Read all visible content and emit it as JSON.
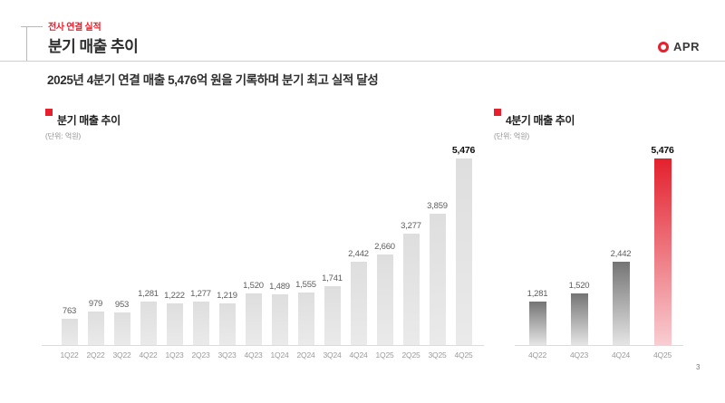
{
  "header": {
    "eyebrow": "전사 연결 실적",
    "title": "분기 매출 추이",
    "logo_text": "APR"
  },
  "subtitle": "2025년 4분기 연결 매출 5,476억 원을 기록하며 분기 최고 실적 달성",
  "page_number": "3",
  "colors": {
    "accent_red": "#e81f2d",
    "bar_light_top": "#dedede",
    "bar_light_bottom": "#eaeaea",
    "bar_gray_top": "#747474",
    "bar_gray_bottom": "#e5e5e5",
    "bar_red_top": "#e3212d",
    "bar_red_bottom": "#f8cdd2"
  },
  "chart_data": [
    {
      "type": "bar",
      "title": "분기 매출 추이",
      "unit_label": "(단위: 억원)",
      "categories": [
        "1Q22",
        "2Q22",
        "3Q22",
        "4Q22",
        "1Q23",
        "2Q23",
        "3Q23",
        "4Q23",
        "1Q24",
        "2Q24",
        "3Q24",
        "4Q24",
        "1Q25",
        "2Q25",
        "3Q25",
        "4Q25"
      ],
      "values": [
        763,
        979,
        953,
        1281,
        1222,
        1277,
        1219,
        1520,
        1489,
        1555,
        1741,
        2442,
        2660,
        3277,
        3859,
        5476
      ],
      "labels": [
        "763",
        "979",
        "953",
        "1,281",
        "1,222",
        "1,277",
        "1,219",
        "1,520",
        "1,489",
        "1,555",
        "1,741",
        "2,442",
        "2,660",
        "3,277",
        "3,859",
        "5,476"
      ],
      "xlabel": "",
      "ylabel": "",
      "ylim": [
        0,
        5476
      ],
      "grid": false,
      "legend": "none",
      "highlight_index": 15,
      "bar_style": "light",
      "highlight_bar_style": "light"
    },
    {
      "type": "bar",
      "title": "4분기 매출 추이",
      "unit_label": "(단위: 억원)",
      "categories": [
        "4Q22",
        "4Q23",
        "4Q24",
        "4Q25"
      ],
      "values": [
        1281,
        1520,
        2442,
        5476
      ],
      "labels": [
        "1,281",
        "1,520",
        "2,442",
        "5,476"
      ],
      "xlabel": "",
      "ylabel": "",
      "ylim": [
        0,
        5476
      ],
      "grid": false,
      "legend": "none",
      "highlight_index": 3,
      "bar_style": "gray-gradient",
      "highlight_bar_style": "red-gradient"
    }
  ]
}
